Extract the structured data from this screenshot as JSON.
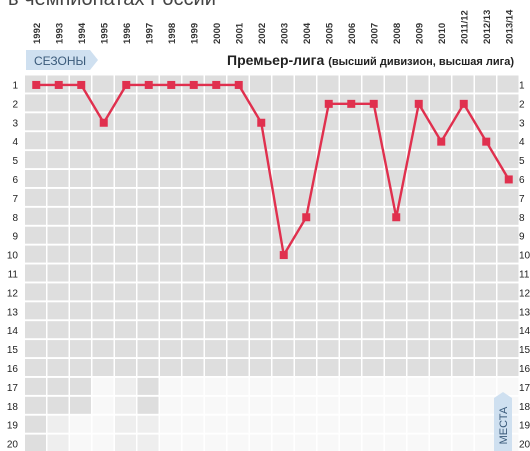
{
  "heading": "в чемпионатах России",
  "seasons_label": "СЕЗОНЫ",
  "league": {
    "name": "Премьер-лига",
    "note": "(высший дивизион, высшая лига)"
  },
  "places_label": "МЕСТА",
  "colors": {
    "line": "#e0304e",
    "cell_active": "#dedede",
    "cell_inactive": "#eeeeee",
    "cell_blank": "#f8f8f8",
    "tab": "#cfe0f0"
  },
  "chart_data": {
    "type": "line",
    "categories": [
      "1992",
      "1993",
      "1994",
      "1995",
      "1996",
      "1997",
      "1998",
      "1999",
      "2000",
      "2001",
      "2002",
      "2003",
      "2004",
      "2005",
      "2006",
      "2007",
      "2008",
      "2009",
      "2010",
      "2011/12",
      "2012/13",
      "2013/14"
    ],
    "series": [
      {
        "values": [
          1,
          1,
          1,
          3,
          1,
          1,
          1,
          1,
          1,
          1,
          3,
          10,
          8,
          2,
          2,
          2,
          8,
          2,
          4,
          2,
          4,
          6
        ]
      }
    ],
    "y_ticks": [
      1,
      2,
      3,
      4,
      5,
      6,
      7,
      8,
      9,
      10,
      11,
      12,
      13,
      14,
      15,
      16,
      17,
      18,
      19,
      20
    ],
    "y_inverted": true,
    "ylim": [
      1,
      20
    ],
    "league_size": [
      20,
      18,
      18,
      16,
      16,
      18,
      16,
      16,
      16,
      16,
      16,
      16,
      16,
      16,
      16,
      16,
      16,
      16,
      16,
      16,
      16,
      16
    ],
    "grid": true
  }
}
